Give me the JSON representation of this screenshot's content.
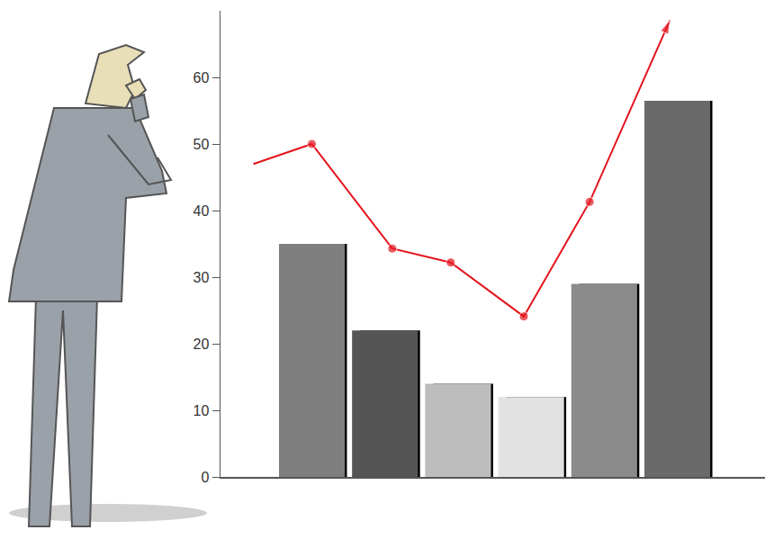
{
  "chart_data": {
    "type": "bar",
    "xlim": [
      -0.25,
      7.2
    ],
    "ylim": [
      0,
      70
    ],
    "yticks": [
      0,
      10,
      20,
      30,
      40,
      50,
      60
    ],
    "tick_labels": "y",
    "grid": false,
    "series": [
      {
        "type": "bar",
        "x": [
          1,
          2,
          3,
          4,
          5,
          6
        ],
        "values": [
          35,
          22,
          14,
          12,
          29,
          56.5
        ],
        "colors": [
          "#7f7f7f",
          "#555555",
          "#bdbdbd",
          "#e2e2e2",
          "#8b8b8b",
          "#6a6a6a"
        ]
      },
      {
        "type": "line",
        "x": [
          0.2,
          1,
          2.1,
          2.9,
          3.9,
          4.8,
          5.9
        ],
        "values": [
          47,
          50,
          34.3,
          32.2,
          24.1,
          41.3,
          68.6
        ],
        "color": "#e3141c",
        "marker": "circle"
      }
    ]
  }
}
